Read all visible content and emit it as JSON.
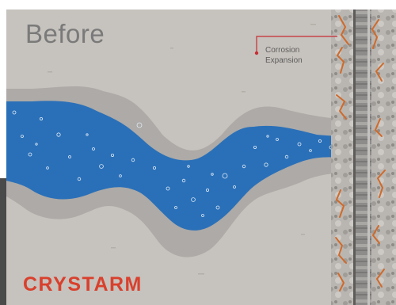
{
  "panel": {
    "title": "Before"
  },
  "callout": {
    "line1": "Corrosion",
    "line2": "Expansion"
  },
  "brand": {
    "logo_text": "CRYSTARM"
  },
  "colors": {
    "concrete": "#c6c2bd",
    "crack_halo": "#adaaa7",
    "water": "#2a70b8",
    "rust": "#d06a2a",
    "callout_line": "#c62d34",
    "logo": "#d9402d"
  }
}
